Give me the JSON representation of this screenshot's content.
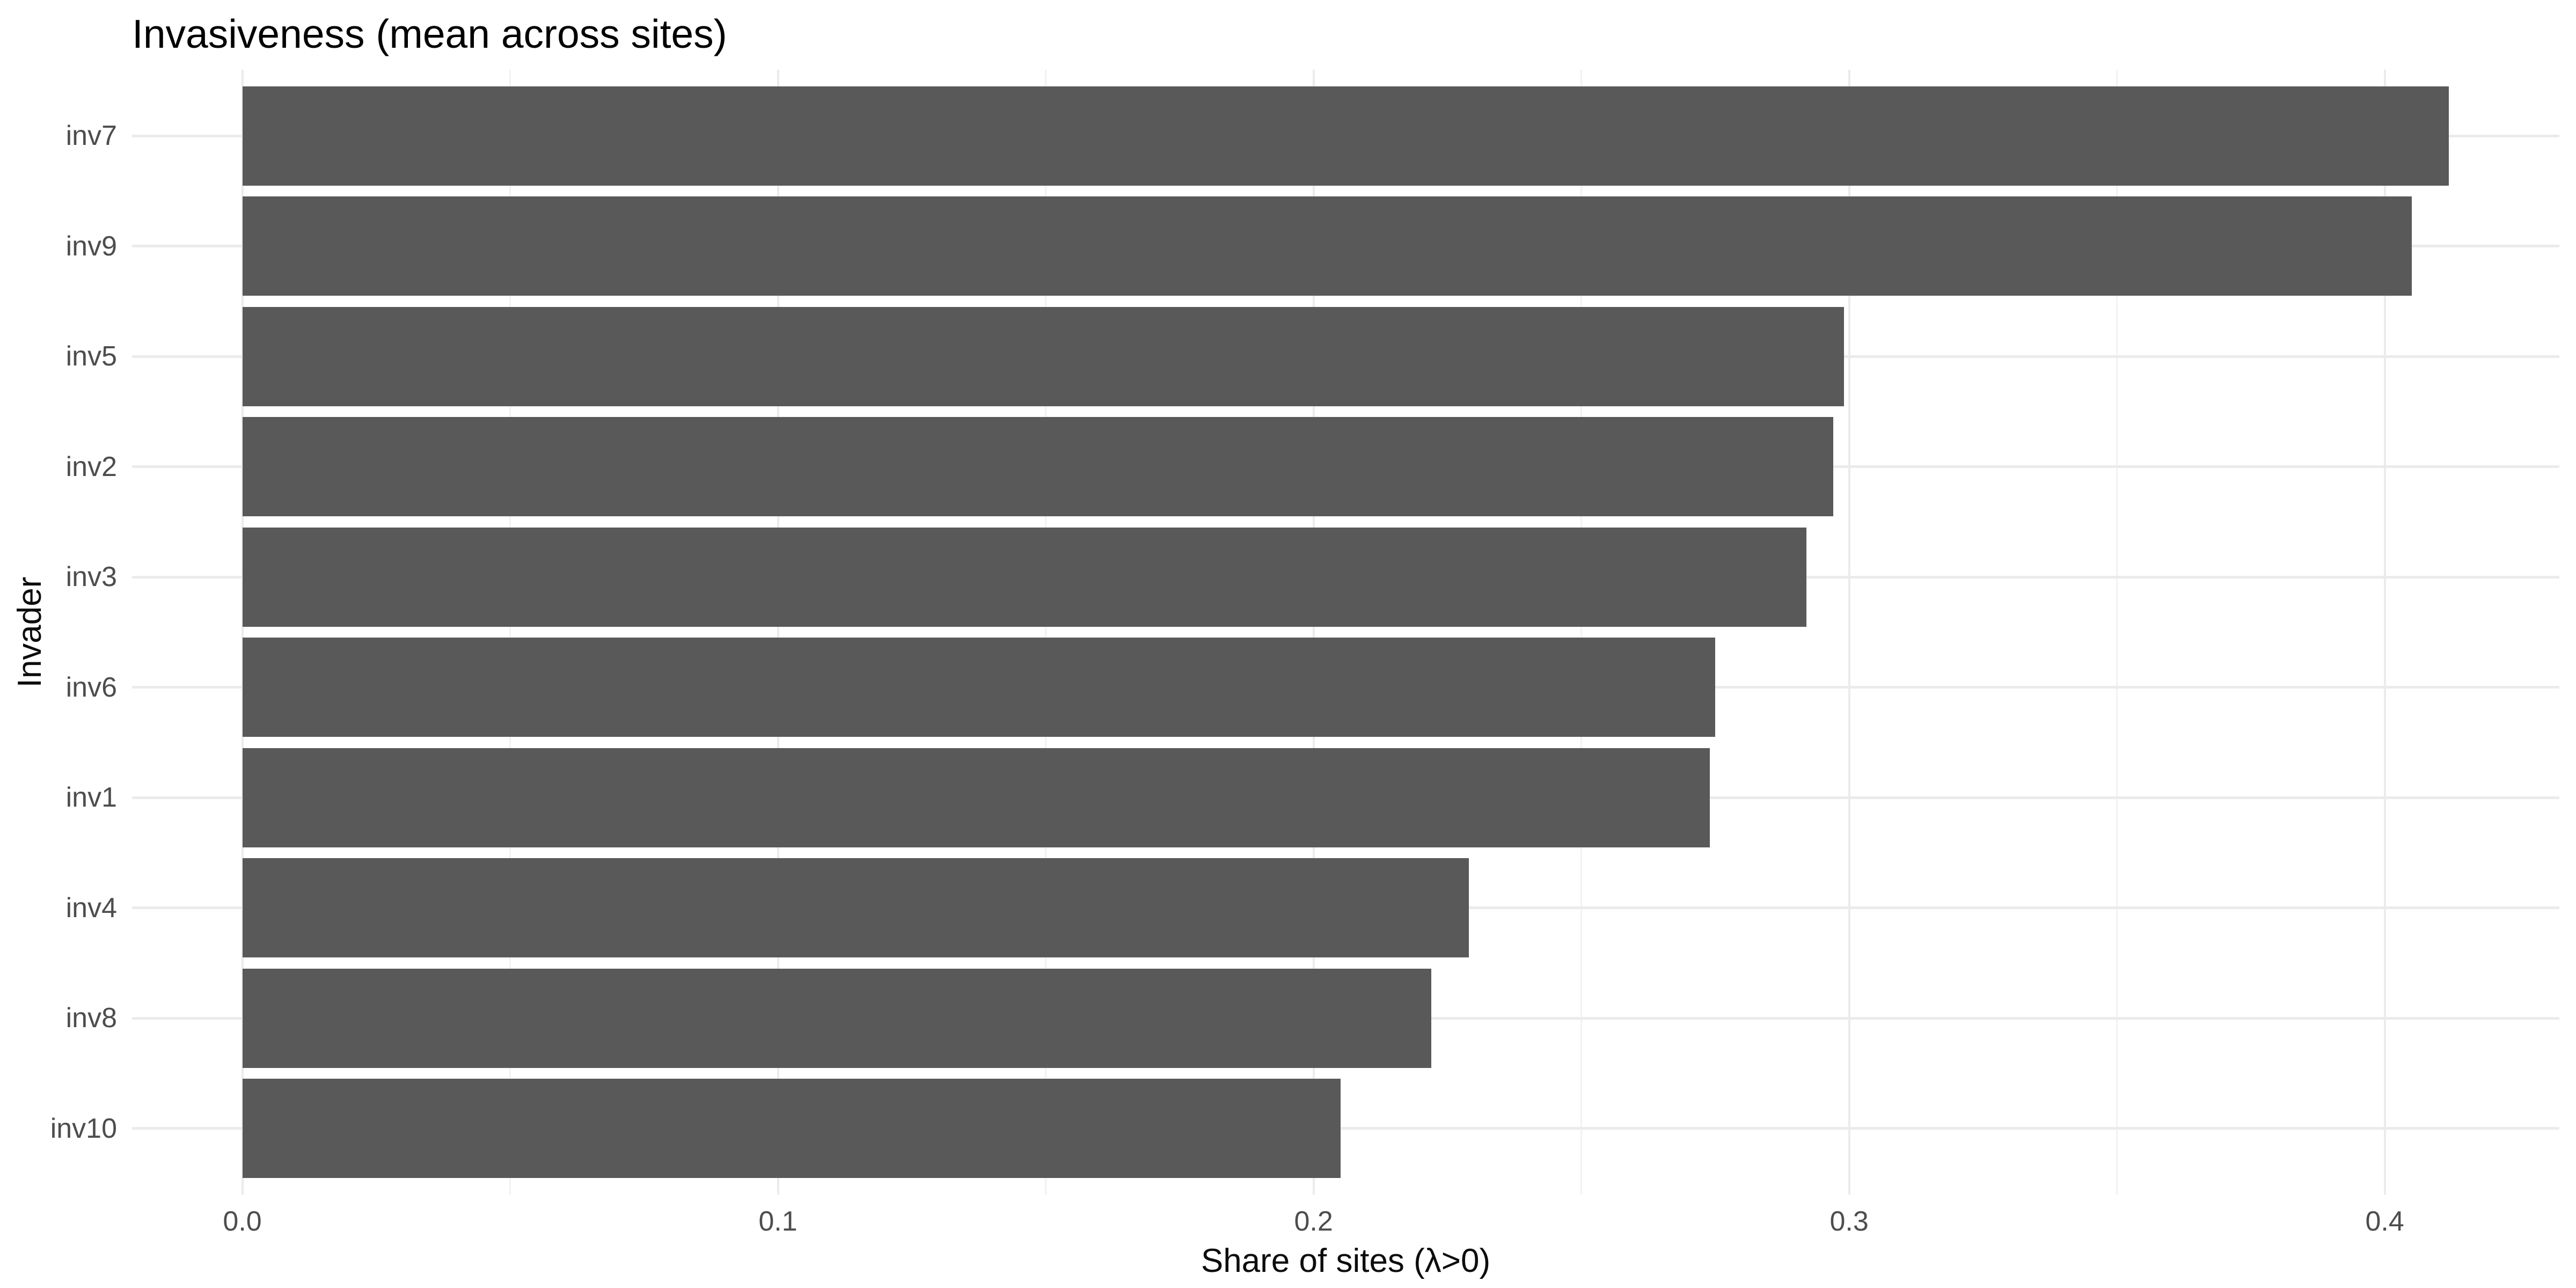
{
  "title": "Invasiveness (mean across sites)",
  "x_axis": {
    "label": "Share of sites (λ>0)",
    "tick_labels": [
      "0.0",
      "0.1",
      "0.2",
      "0.3",
      "0.4"
    ],
    "tick_values": [
      0,
      0.1,
      0.2,
      0.3,
      0.4
    ],
    "minor_tick_values": [
      0.05,
      0.15,
      0.25,
      0.35
    ]
  },
  "y_axis": {
    "label": "Invader",
    "categories": [
      "inv7",
      "inv9",
      "inv5",
      "inv2",
      "inv3",
      "inv6",
      "inv1",
      "inv4",
      "inv8",
      "inv10"
    ]
  },
  "chart_data": {
    "type": "bar",
    "orientation": "horizontal",
    "title": "Invasiveness (mean across sites)",
    "xlabel": "Share of sites (λ>0)",
    "ylabel": "Invader",
    "categories": [
      "inv7",
      "inv9",
      "inv5",
      "inv2",
      "inv3",
      "inv6",
      "inv1",
      "inv4",
      "inv8",
      "inv10"
    ],
    "values": [
      0.412,
      0.405,
      0.299,
      0.297,
      0.292,
      0.275,
      0.274,
      0.229,
      0.222,
      0.205
    ],
    "xlim": [
      0,
      0.433
    ],
    "x_ticks": [
      0,
      0.1,
      0.2,
      0.3,
      0.4
    ],
    "x_minor_ticks": [
      0.05,
      0.15,
      0.25,
      0.35
    ],
    "grid": "major+minor",
    "legend_position": "none",
    "sorted": "descending",
    "bar_width_fraction": 0.9
  },
  "colors": {
    "bar": "#595959",
    "grid_major": "#EBEBEB",
    "grid_minor": "#F2F2F2",
    "axis_text": "#4D4D4D",
    "axis_title_text": "#0D0D0D",
    "title_text": "#000000",
    "background": "#FFFFFF"
  }
}
